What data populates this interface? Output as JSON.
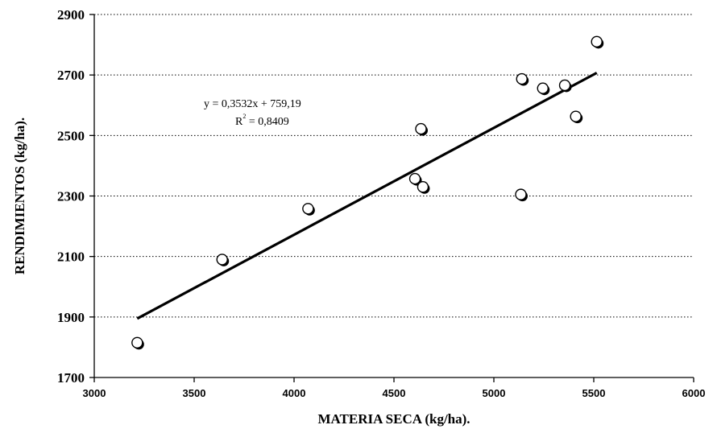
{
  "chart_data": {
    "type": "scatter",
    "title": "",
    "xlabel": "MATERIA SECA (kg/ha).",
    "ylabel": "RENDIMIENTOS (kg/ha).",
    "xlim": [
      3000,
      6000
    ],
    "ylim": [
      1700,
      2900
    ],
    "x_ticks": [
      "3000",
      "3500",
      "4000",
      "4500",
      "5000",
      "5500",
      "6000"
    ],
    "y_ticks": [
      "1700",
      "1900",
      "2100",
      "2300",
      "2500",
      "2700",
      "2900"
    ],
    "grid": {
      "horizontal": true,
      "style": "dotted"
    },
    "series": [
      {
        "points": [
          {
            "x": 3215,
            "y": 1815
          },
          {
            "x": 3640,
            "y": 2090
          },
          {
            "x": 4070,
            "y": 2258
          },
          {
            "x": 4605,
            "y": 2357
          },
          {
            "x": 4645,
            "y": 2330
          },
          {
            "x": 4635,
            "y": 2522
          },
          {
            "x": 5135,
            "y": 2305
          },
          {
            "x": 5140,
            "y": 2687
          },
          {
            "x": 5245,
            "y": 2656
          },
          {
            "x": 5355,
            "y": 2666
          },
          {
            "x": 5410,
            "y": 2563
          },
          {
            "x": 5515,
            "y": 2810
          }
        ]
      }
    ],
    "trendline": {
      "type": "linear",
      "slope": 0.3532,
      "intercept": 759.19,
      "x_range": [
        3215,
        5515
      ],
      "equation_label": "y = 0,3532x + 759,19",
      "r2_label_prefix": "R",
      "r2_label_exponent": "2",
      "r2_label_value": " = 0,8409"
    }
  }
}
